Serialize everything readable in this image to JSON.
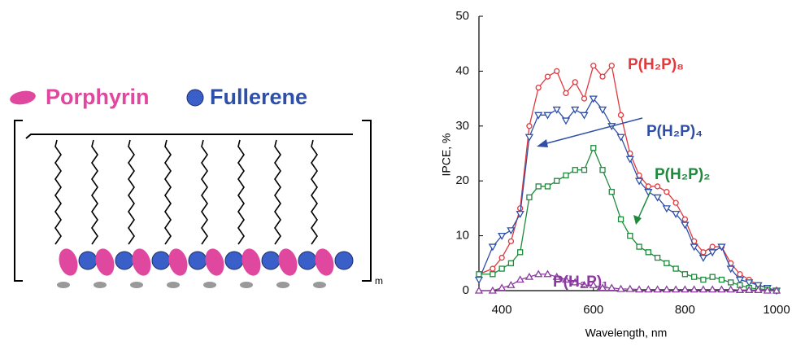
{
  "legend": {
    "porphyrin": "Porphyrin",
    "fullerene": "Fullerene"
  },
  "repeat_label": "m",
  "chart_data": {
    "type": "line",
    "x_label": "Wavelength, nm",
    "y_label": "IPCE, %",
    "xlim": [
      350,
      1000
    ],
    "ylim": [
      0,
      50
    ],
    "xticks": [
      400,
      600,
      800,
      1000
    ],
    "yticks": [
      0,
      10,
      20,
      30,
      40,
      50
    ],
    "x": [
      350,
      380,
      400,
      420,
      440,
      460,
      480,
      500,
      520,
      540,
      560,
      580,
      600,
      620,
      640,
      660,
      680,
      700,
      720,
      740,
      760,
      780,
      800,
      820,
      840,
      860,
      880,
      900,
      920,
      940,
      960,
      980,
      1000
    ],
    "series": [
      {
        "name": "P(H₂P)₈",
        "color": "#e0393e",
        "marker": "circle",
        "values": [
          3,
          4,
          6,
          9,
          15,
          30,
          37,
          39,
          40,
          36,
          38,
          35,
          41,
          39,
          41,
          32,
          25,
          21,
          19,
          19,
          18,
          16,
          13,
          9,
          7,
          8,
          8,
          5,
          3,
          2,
          1,
          0.5,
          0
        ]
      },
      {
        "name": "P(H₂P)₄",
        "color": "#2e4fa8",
        "marker": "triangle-down",
        "values": [
          2,
          8,
          10,
          11,
          14,
          28,
          32,
          32,
          33,
          31,
          33,
          32,
          35,
          33,
          30,
          28,
          24,
          20,
          18,
          17,
          15,
          14,
          12,
          8,
          6,
          7,
          8,
          4,
          2,
          1.5,
          1,
          0.5,
          0
        ]
      },
      {
        "name": "P(H₂P)₂",
        "color": "#1e8a3c",
        "marker": "square",
        "values": [
          3,
          3,
          4,
          5,
          7,
          17,
          19,
          19,
          20,
          21,
          22,
          22,
          26,
          22,
          18,
          13,
          10,
          8,
          7,
          6,
          5,
          4,
          3,
          2.5,
          2,
          2.5,
          2,
          1.5,
          1,
          0.5,
          0.3,
          0.2,
          0
        ]
      },
      {
        "name": "P(H₂P)₁",
        "color": "#8a3a9e",
        "marker": "triangle-up",
        "values": [
          0,
          0,
          0.5,
          1,
          2,
          2.5,
          3,
          3,
          2.5,
          2,
          1.5,
          1,
          1,
          0.5,
          0.5,
          0.3,
          0.3,
          0.2,
          0.2,
          0.2,
          0.2,
          0.2,
          0.2,
          0.2,
          0.2,
          0.2,
          0.2,
          0.2,
          0.1,
          0.1,
          0.1,
          0,
          0
        ]
      }
    ]
  }
}
